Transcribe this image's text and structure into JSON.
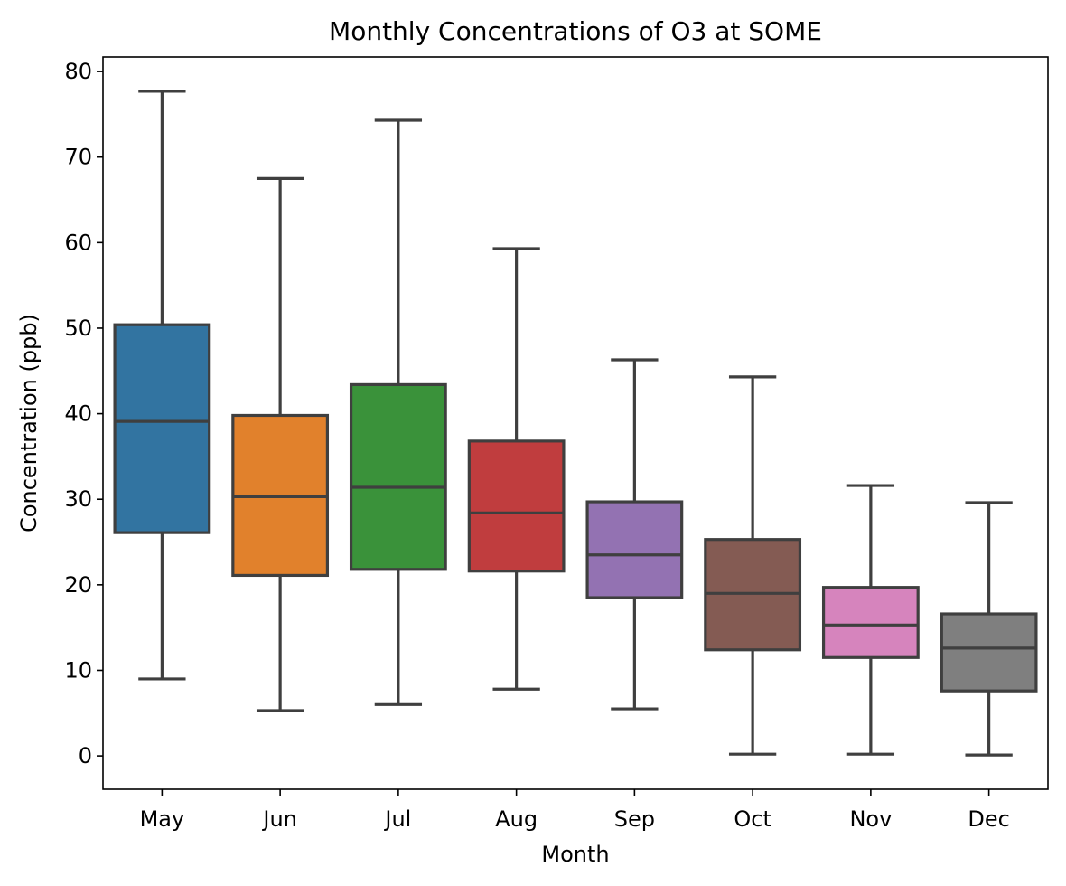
{
  "chart_data": {
    "type": "box",
    "title": "Monthly Concentrations of O3 at SOME",
    "xlabel": "Month",
    "ylabel": "Concentration (ppb)",
    "ylim": [
      -3.9,
      81.7
    ],
    "yticks": [
      0,
      10,
      20,
      30,
      40,
      50,
      60,
      70,
      80
    ],
    "grid": false,
    "legend": "none",
    "categories": [
      "May",
      "Jun",
      "Jul",
      "Aug",
      "Sep",
      "Oct",
      "Nov",
      "Dec"
    ],
    "series": [
      {
        "boxes": [
          {
            "category": "May",
            "whisker_low": 9.0,
            "q1": 26.1,
            "median": 39.1,
            "q3": 50.4,
            "whisker_high": 77.7,
            "color": "#3274a1"
          },
          {
            "category": "Jun",
            "whisker_low": 5.3,
            "q1": 21.1,
            "median": 30.3,
            "q3": 39.8,
            "whisker_high": 67.5,
            "color": "#e1812c"
          },
          {
            "category": "Jul",
            "whisker_low": 6.0,
            "q1": 21.8,
            "median": 31.4,
            "q3": 43.4,
            "whisker_high": 74.3,
            "color": "#3a923a"
          },
          {
            "category": "Aug",
            "whisker_low": 7.8,
            "q1": 21.6,
            "median": 28.4,
            "q3": 36.8,
            "whisker_high": 59.3,
            "color": "#c03d3e"
          },
          {
            "category": "Sep",
            "whisker_low": 5.5,
            "q1": 18.5,
            "median": 23.5,
            "q3": 29.7,
            "whisker_high": 46.3,
            "color": "#9372b2"
          },
          {
            "category": "Oct",
            "whisker_low": 0.2,
            "q1": 12.4,
            "median": 19.0,
            "q3": 25.3,
            "whisker_high": 44.3,
            "color": "#845b53"
          },
          {
            "category": "Nov",
            "whisker_low": 0.2,
            "q1": 11.5,
            "median": 15.3,
            "q3": 19.7,
            "whisker_high": 31.6,
            "color": "#d684bd"
          },
          {
            "category": "Dec",
            "whisker_low": 0.1,
            "q1": 7.6,
            "median": 12.6,
            "q3": 16.6,
            "whisker_high": 29.6,
            "color": "#7f7f7f"
          }
        ]
      }
    ],
    "line_color": "#3f3f3f"
  }
}
